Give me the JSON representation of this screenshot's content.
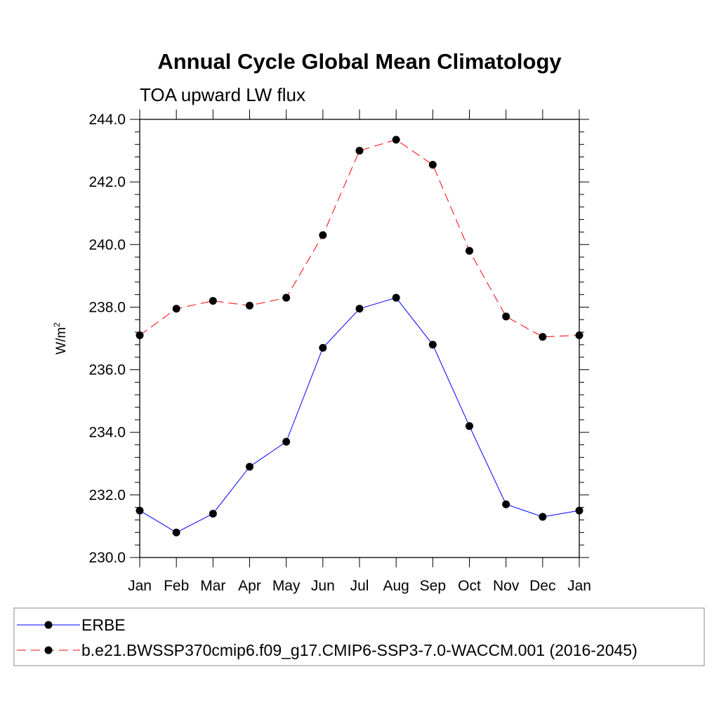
{
  "chart_data": {
    "type": "line",
    "title": "Annual Cycle Global Mean Climatology",
    "subtitle": "TOA upward LW flux",
    "xlabel": "",
    "ylabel_base": "W/m",
    "ylabel_sup": "2",
    "categories": [
      "Jan",
      "Feb",
      "Mar",
      "Apr",
      "May",
      "Jun",
      "Jul",
      "Aug",
      "Sep",
      "Oct",
      "Nov",
      "Dec",
      "Jan"
    ],
    "ylim": [
      230.0,
      244.0
    ],
    "yticks": [
      "230.0",
      "232.0",
      "234.0",
      "236.0",
      "238.0",
      "240.0",
      "242.0",
      "244.0"
    ],
    "grid": false,
    "legend_position": "bottom",
    "series": [
      {
        "name": "ERBE",
        "color": "#0000ff",
        "dash": "solid",
        "values": [
          231.5,
          230.8,
          231.4,
          232.9,
          233.7,
          236.7,
          237.95,
          238.3,
          236.8,
          234.2,
          231.7,
          231.3,
          231.5
        ]
      },
      {
        "name": "b.e21.BWSSP370cmip6.f09_g17.CMIP6-SSP3-7.0-WACCM.001 (2016-2045)",
        "color": "#ff0000",
        "dash": "dashed",
        "values": [
          237.1,
          237.95,
          238.2,
          238.05,
          238.3,
          240.3,
          243.0,
          243.35,
          242.55,
          239.8,
          237.7,
          237.05,
          237.1
        ]
      }
    ]
  }
}
